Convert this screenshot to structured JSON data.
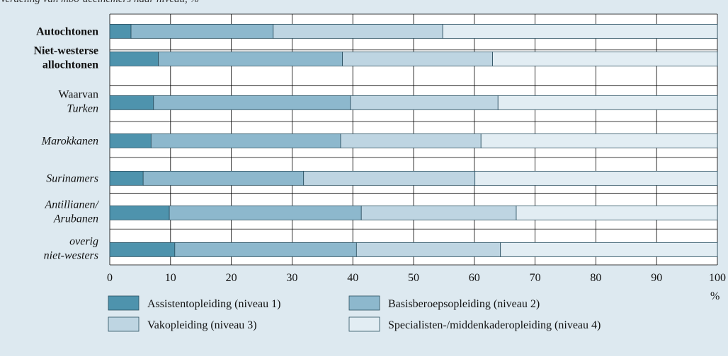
{
  "header": {
    "text": "Verdeling van mbo-deelnemers naar niveau, %"
  },
  "colors": {
    "background": "#dde9f0",
    "plot_background": "#ffffff",
    "grid": "#000000",
    "series": [
      "#4e93ad",
      "#8db8cd",
      "#bed5e2",
      "#e2edf3"
    ]
  },
  "chart_data": {
    "type": "bar",
    "orientation": "horizontal",
    "stacked": true,
    "categories": [
      {
        "lines": [
          "Autochtonen"
        ],
        "style": "bold"
      },
      {
        "lines": [
          "Niet-westerse",
          "allochtonen"
        ],
        "style": "bold"
      },
      {
        "lines": [
          "Waarvan",
          "Turken"
        ],
        "style": "mixed"
      },
      {
        "lines": [
          "Marokkanen"
        ],
        "style": "italic"
      },
      {
        "lines": [
          "Surinamers"
        ],
        "style": "italic"
      },
      {
        "lines": [
          "Antillianen/",
          "Arubanen"
        ],
        "style": "italic"
      },
      {
        "lines": [
          "overig",
          "niet-westers"
        ],
        "style": "italic"
      }
    ],
    "series": [
      {
        "name": "Assistentopleiding (niveau 1)",
        "values": [
          3.5,
          8,
          7.2,
          6.8,
          5.5,
          9.8,
          10.7
        ]
      },
      {
        "name": "Basisberoepsopleiding (niveau 2)",
        "values": [
          23.4,
          30.3,
          32.4,
          31.2,
          26.4,
          31.6,
          29.9
        ]
      },
      {
        "name": "Vakopleiding (niveau 3)",
        "values": [
          27.9,
          24.7,
          24.3,
          23.1,
          28.2,
          25.5,
          23.7
        ]
      },
      {
        "name": "Specialisten-/middenkaderopleiding (niveau 4)",
        "values": [
          45.2,
          37,
          36.1,
          38.9,
          39.9,
          33.1,
          35.7
        ]
      }
    ],
    "xlim": [
      0,
      100
    ],
    "xticks": [
      "0",
      "10",
      "20",
      "30",
      "40",
      "50",
      "60",
      "70",
      "80",
      "90",
      "100"
    ],
    "xunit": "%",
    "grid": true,
    "legend_position": "bottom"
  }
}
